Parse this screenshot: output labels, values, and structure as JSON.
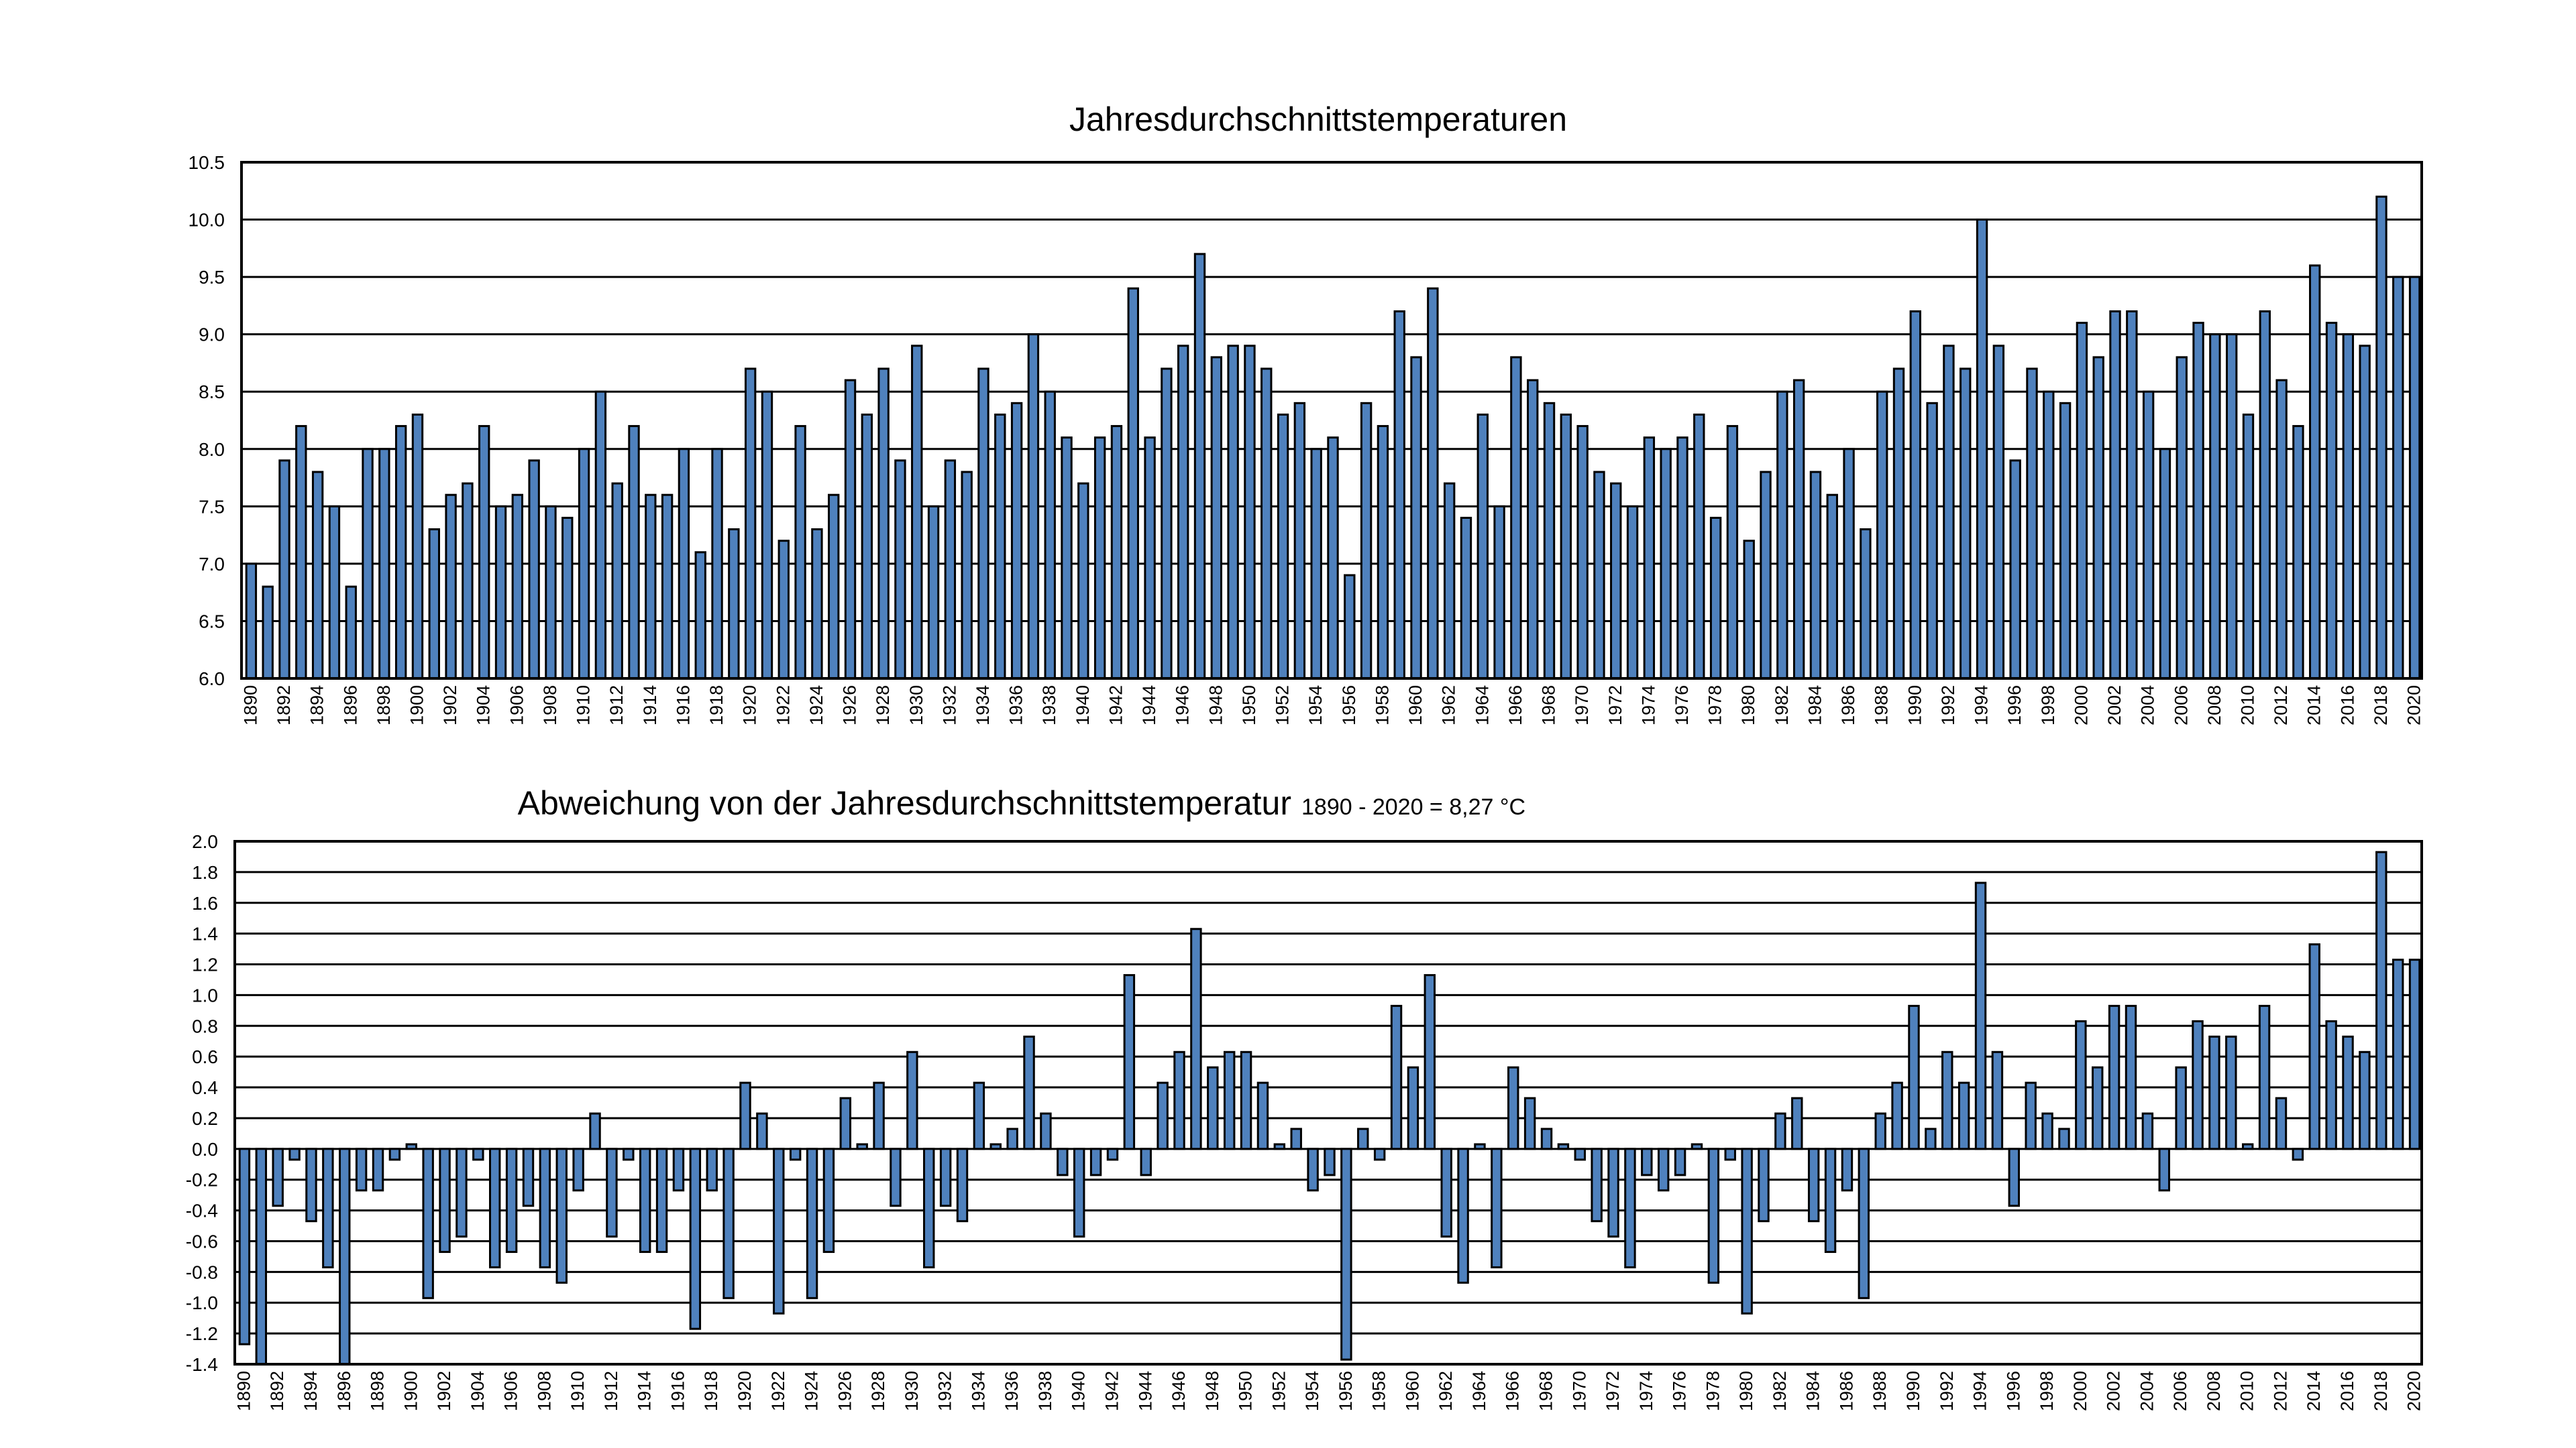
{
  "chart_data": [
    {
      "type": "bar",
      "title": "Jahresdurchschnittstemperaturen",
      "xlabel": "",
      "ylabel": "",
      "ylim": [
        6.0,
        10.5
      ],
      "yticks": [
        "6.0",
        "6.5",
        "7.0",
        "7.5",
        "8.0",
        "8.5",
        "9.0",
        "9.5",
        "10.0",
        "10.5"
      ],
      "grid": true,
      "bar_color": "#4f81bd",
      "x_start": 1890,
      "x_end": 2020,
      "values": [
        7.0,
        6.8,
        7.9,
        8.2,
        7.8,
        7.5,
        6.8,
        8.0,
        8.0,
        8.2,
        8.3,
        7.3,
        7.6,
        7.7,
        8.2,
        7.5,
        7.6,
        7.9,
        7.5,
        7.4,
        8.0,
        8.5,
        7.7,
        8.2,
        7.6,
        7.6,
        8.0,
        7.1,
        8.0,
        7.3,
        8.7,
        8.5,
        7.2,
        8.2,
        7.3,
        7.6,
        8.6,
        8.3,
        8.7,
        7.9,
        8.9,
        7.5,
        7.9,
        7.8,
        8.7,
        8.3,
        8.4,
        9.0,
        8.5,
        8.1,
        7.7,
        8.1,
        8.2,
        9.4,
        8.1,
        8.7,
        8.9,
        9.7,
        8.8,
        8.9,
        8.9,
        8.7,
        8.3,
        8.4,
        8.0,
        8.1,
        6.9,
        8.4,
        8.2,
        9.2,
        8.8,
        9.4,
        7.7,
        7.4,
        8.3,
        7.5,
        8.8,
        8.6,
        8.4,
        8.3,
        8.2,
        7.8,
        7.7,
        7.5,
        8.1,
        8.0,
        8.1,
        8.3,
        7.4,
        8.2,
        7.2,
        7.8,
        8.5,
        8.6,
        7.8,
        7.6,
        8.0,
        7.3,
        8.5,
        8.7,
        9.2,
        8.4,
        8.9,
        8.7,
        10.0,
        8.9,
        7.9,
        8.7,
        8.5,
        8.4,
        9.1,
        8.8,
        9.2,
        9.2,
        8.5,
        8.0,
        8.8,
        9.1,
        9.0,
        9.0,
        8.3,
        9.2,
        8.6,
        8.2,
        9.6,
        9.1,
        9.0,
        8.9,
        10.2,
        9.5,
        9.5
      ]
    },
    {
      "type": "bar",
      "title": "Abweichung von der Jahresdurchschnittstemperatur",
      "subtitle": "1890 - 2020 = 8,27 °C",
      "xlabel": "",
      "ylabel": "",
      "ylim": [
        -1.4,
        2.0
      ],
      "yticks": [
        "-1.4",
        "-1.2",
        "-1.0",
        "-0.8",
        "-0.6",
        "-0.4",
        "-0.2",
        "0.0",
        "0.2",
        "0.4",
        "0.6",
        "0.8",
        "1.0",
        "1.2",
        "1.4",
        "1.6",
        "1.8",
        "2.0"
      ],
      "grid": true,
      "bar_color": "#4f81bd",
      "baseline": 8.27,
      "x_start": 1890,
      "x_end": 2020
    }
  ]
}
